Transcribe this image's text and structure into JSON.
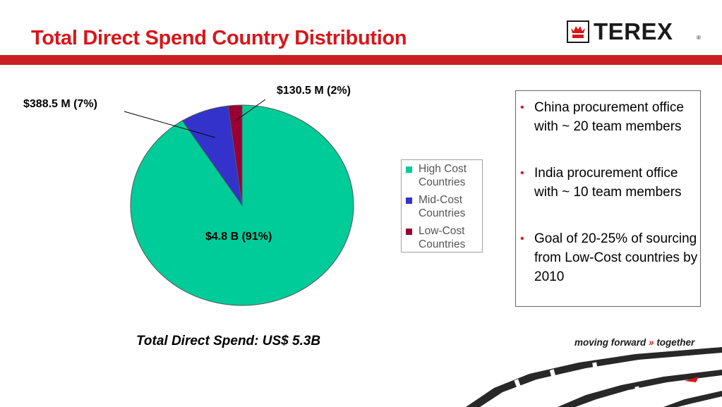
{
  "header": {
    "title": "Total Direct Spend Country Distribution",
    "logo_text": "TEREX",
    "logo_reg": "®"
  },
  "colors": {
    "title_red": "#d7161b",
    "band_red": "#cc1f24"
  },
  "chart_data": {
    "type": "pie",
    "title": "",
    "slices": [
      {
        "name": "High Cost Countries",
        "value": 91,
        "label": "$4.8 B  (91%)",
        "color": "#00cc99"
      },
      {
        "name": "Mid-Cost Countries",
        "value": 7,
        "label": "$388.5 M  (7%)",
        "color": "#3333cc"
      },
      {
        "name": "Low-Cost Countries",
        "value": 2,
        "label": "$130.5 M  (2%)",
        "color": "#990033"
      }
    ],
    "legend": [
      "High Cost Countries",
      "Mid-Cost Countries",
      "Low-Cost Countries"
    ],
    "legend_position": "right"
  },
  "bullets": [
    " China procurement office with ~ 20 team members",
    "  India procurement office with ~ 10 team members",
    "Goal of 20-25% of sourcing from Low-Cost countries by 2010"
  ],
  "footer": {
    "total_spend": "Total Direct Spend: US$ 5.3B",
    "tagline_left": "moving forward",
    "tagline_arrow": "»",
    "tagline_right": "together"
  }
}
